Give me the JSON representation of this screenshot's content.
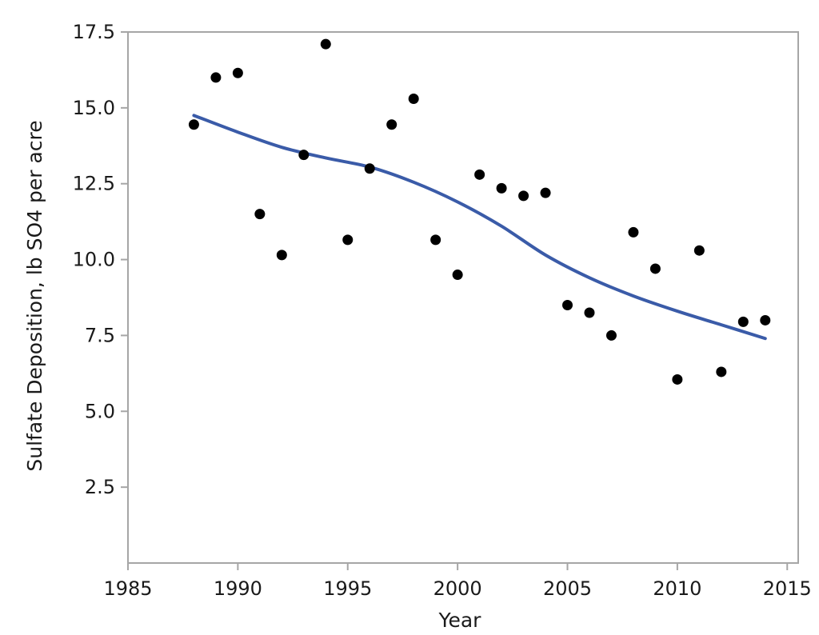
{
  "chart_data": {
    "type": "scatter",
    "title": "",
    "xlabel": "Year",
    "ylabel": "Sulfate Deposition, lb SO4 per acre",
    "xlim": [
      1985,
      2015.5
    ],
    "ylim": [
      0,
      17.5
    ],
    "x_ticks": [
      1985,
      1990,
      1995,
      2000,
      2005,
      2010,
      2015
    ],
    "x_tick_labels": [
      "1985",
      "1990",
      "1995",
      "2000",
      "2005",
      "2010",
      "2015"
    ],
    "y_ticks": [
      2.5,
      5.0,
      7.5,
      10.0,
      12.5,
      15.0,
      17.5
    ],
    "y_tick_labels": [
      "2.5",
      "5.0",
      "7.5",
      "10.0",
      "12.5",
      "15.0",
      "17.5"
    ],
    "grid": false,
    "series": [
      {
        "kind": "points",
        "color": "#000000",
        "x": [
          1988,
          1989,
          1990,
          1991,
          1992,
          1993,
          1994,
          1995,
          1996,
          1997,
          1998,
          1999,
          2000,
          2001,
          2002,
          2003,
          2004,
          2005,
          2006,
          2007,
          2008,
          2009,
          2010,
          2011,
          2012,
          2013,
          2014
        ],
        "y": [
          14.45,
          16.0,
          16.15,
          11.5,
          10.15,
          13.45,
          17.1,
          10.65,
          13.0,
          14.45,
          15.3,
          10.65,
          9.5,
          12.8,
          12.35,
          12.1,
          12.2,
          8.5,
          8.25,
          7.5,
          10.9,
          9.7,
          6.05,
          10.3,
          6.3,
          7.95,
          8.0
        ]
      },
      {
        "kind": "smooth-line",
        "color": "#3a5ba8",
        "x": [
          1988,
          1990,
          1992,
          1994,
          1996,
          1998,
          2000,
          2002,
          2004,
          2006,
          2008,
          2010,
          2012,
          2014
        ],
        "y": [
          14.75,
          14.2,
          13.7,
          13.35,
          13.05,
          12.55,
          11.9,
          11.1,
          10.15,
          9.4,
          8.8,
          8.3,
          7.85,
          7.4
        ]
      }
    ]
  }
}
